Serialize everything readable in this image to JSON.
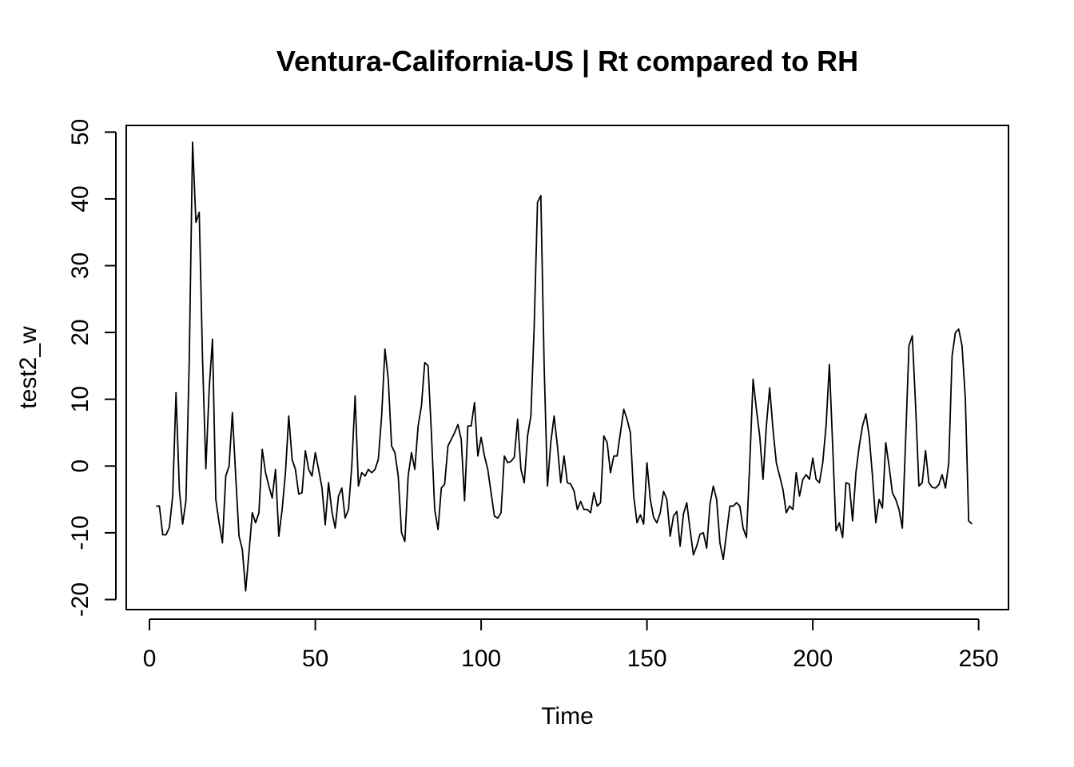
{
  "chart_data": {
    "type": "line",
    "title": "Ventura-California-US | Rt compared to RH",
    "xlabel": "Time",
    "ylabel": "test2_w",
    "xlim": [
      -7,
      259
    ],
    "ylim": [
      -21.5,
      51
    ],
    "xticks": [
      0,
      50,
      100,
      150,
      200,
      250
    ],
    "yticks": [
      -20,
      -10,
      0,
      10,
      20,
      30,
      40,
      50
    ],
    "grid": false,
    "legend": "none",
    "line_color": "#000000",
    "series": [
      {
        "x_start": 2,
        "values": [
          -6,
          -6,
          -10.3,
          -10.3,
          -9.2,
          -4.5,
          11,
          -3.5,
          -8.7,
          -5.2,
          16,
          48.5,
          36.5,
          38,
          16,
          -0.4,
          11.5,
          19,
          -5,
          -8.5,
          -11.5,
          -1.5,
          0,
          8,
          -1.5,
          -10.5,
          -12.5,
          -18.7,
          -13,
          -7,
          -8.5,
          -7,
          2.5,
          -1,
          -3,
          -4.8,
          -0.5,
          -10.5,
          -6.5,
          -1,
          7.5,
          1,
          -0.5,
          -4.2,
          -4,
          2.3,
          -0.5,
          -1.5,
          2,
          -0.5,
          -3.2,
          -8.8,
          -2.5,
          -6.8,
          -9.3,
          -4.5,
          -3.3,
          -7.8,
          -6.5,
          0,
          10.5,
          -3,
          -1,
          -1.5,
          -0.5,
          -1,
          -0.5,
          1,
          7.5,
          17.5,
          13,
          3,
          2,
          -1.5,
          -10,
          -11.3,
          -1.5,
          2,
          -0.5,
          6,
          9,
          15.5,
          15,
          5,
          -6.5,
          -9.5,
          -3.3,
          -2.7,
          3,
          4,
          5,
          6.2,
          4,
          -5.2,
          6,
          6,
          9.5,
          1.5,
          4.3,
          1.5,
          -0.5,
          -4,
          -7.5,
          -7.8,
          -7,
          1.5,
          0.5,
          0.7,
          1.3,
          7,
          -0.5,
          -2.5,
          4.5,
          7.5,
          21,
          39.5,
          40.5,
          15,
          -3,
          3.5,
          7.5,
          3,
          -2.5,
          1.5,
          -2.5,
          -2.7,
          -3.7,
          -6.5,
          -5.3,
          -6.5,
          -6.5,
          -7,
          -4,
          -6,
          -5.5,
          4.5,
          3.5,
          -1,
          1.5,
          1.5,
          5,
          8.5,
          7,
          5,
          -4.5,
          -8.5,
          -7.3,
          -8.7,
          0.5,
          -5,
          -7.7,
          -8.5,
          -7,
          -3.8,
          -5,
          -10.5,
          -7.5,
          -6.8,
          -12,
          -7.2,
          -5.5,
          -9.5,
          -13.3,
          -12,
          -10.2,
          -10,
          -12.3,
          -5.7,
          -3,
          -5,
          -11.5,
          -14,
          -10,
          -6,
          -6,
          -5.5,
          -6,
          -9.3,
          -10.7,
          0.5,
          13,
          8.5,
          4.5,
          -2,
          6,
          11.7,
          5.5,
          0.5,
          -1.5,
          -3.5,
          -7,
          -6,
          -6.5,
          -1,
          -4.5,
          -2,
          -1.3,
          -2,
          1.2,
          -2,
          -2.5,
          0.5,
          6,
          15.2,
          3,
          -9.7,
          -8.5,
          -10.7,
          -2.5,
          -2.7,
          -8.2,
          -1,
          3,
          6,
          7.8,
          4.5,
          -1.5,
          -8.5,
          -5,
          -6.3,
          3.5,
          0,
          -4,
          -5,
          -6.5,
          -9.3,
          4,
          18,
          19.5,
          9,
          -3,
          -2.5,
          2.3,
          -2.5,
          -3.2,
          -3.3,
          -2.8,
          -1.3,
          -3.3,
          0.5,
          16.5,
          20,
          20.5,
          18,
          10,
          -8.2,
          -8.7
        ]
      }
    ]
  }
}
